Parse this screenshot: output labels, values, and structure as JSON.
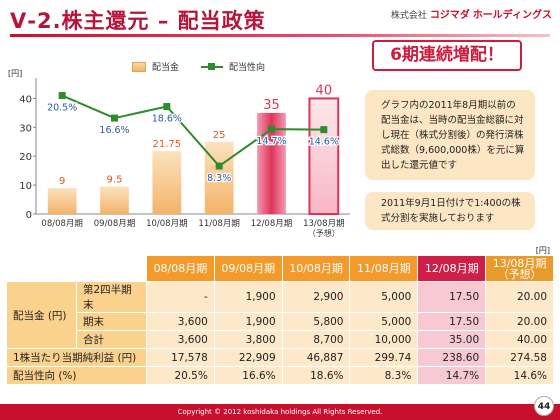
{
  "header": {
    "title": "Ⅴ-2.株主還元 – 配当政策",
    "company_prefix": "株式会社",
    "company_brand": "コジマダ",
    "company_suffix": "ホールディングス"
  },
  "badge": "6期連続増配！",
  "notes": {
    "note1": "グラフ内の2011年8月期以前の配当金は、当時の配当金総額に対し現在（株式分割後）の発行済株式総数（9,600,000株）を元に算出した還元値です",
    "note2": "2011年9月1日付けで1:400の株式分割を実施しております"
  },
  "legend": {
    "bar": "配当金",
    "line": "配当性向"
  },
  "chart_data": {
    "type": "bar",
    "y_unit": "[円]",
    "ylim": [
      0,
      45
    ],
    "yticks": [
      0,
      10,
      20,
      30,
      40
    ],
    "categories": [
      "08/08月期",
      "09/08月期",
      "10/08月期",
      "11/08月期",
      "12/08月期",
      "13/08月期"
    ],
    "category_sub": [
      "",
      "",
      "",
      "",
      "",
      "（予想）"
    ],
    "series": [
      {
        "name": "配当金",
        "values": [
          9,
          9.5,
          21.75,
          25,
          35,
          40
        ],
        "labels": [
          "9",
          "9.5",
          "21.75",
          "25",
          "35",
          "40"
        ]
      },
      {
        "name": "配当性向",
        "values": [
          20.5,
          16.6,
          18.6,
          8.3,
          14.7,
          14.6
        ],
        "labels": [
          "20.5%",
          "16.6%",
          "18.6%",
          "8.3%",
          "14.7%",
          "14.6%"
        ]
      }
    ],
    "highlight_index": 4,
    "forecast_index": 5,
    "colors": {
      "bar": "#f3b36a",
      "bar_highlight": "#e0335a",
      "line": "#2e8b2e",
      "label": "#e8561a",
      "label_highlight": "#e0335a"
    }
  },
  "table": {
    "unit": "[円]",
    "headers": [
      "08/08月期",
      "09/08月期",
      "10/08月期",
      "11/08月期",
      "12/08月期",
      "13/08月期\n（予想）"
    ],
    "rows": [
      {
        "group": "配当金 (円)",
        "sub": "第2四半期末",
        "values": [
          "-",
          "1,900",
          "2,900",
          "5,000",
          "17.50",
          "20.00"
        ]
      },
      {
        "group": "",
        "sub": "期末",
        "values": [
          "3,600",
          "1,900",
          "5,800",
          "5,000",
          "17.50",
          "20.00"
        ]
      },
      {
        "group": "",
        "sub": "合計",
        "values": [
          "3,600",
          "3,800",
          "8,700",
          "10,000",
          "35.00",
          "40.00"
        ]
      },
      {
        "group": "1株当たり当期純利益 (円)",
        "sub": "",
        "values": [
          "17,578",
          "22,909",
          "46,887",
          "299.74",
          "238.60",
          "274.58"
        ]
      },
      {
        "group": "配当性向 (%)",
        "sub": "",
        "values": [
          "20.5%",
          "16.6%",
          "18.6%",
          "8.3%",
          "14.7%",
          "14.6%"
        ]
      }
    ]
  },
  "footer": "Copyright © 2012 koshidaka holdings All Rights Reserved.",
  "page_number": "44"
}
